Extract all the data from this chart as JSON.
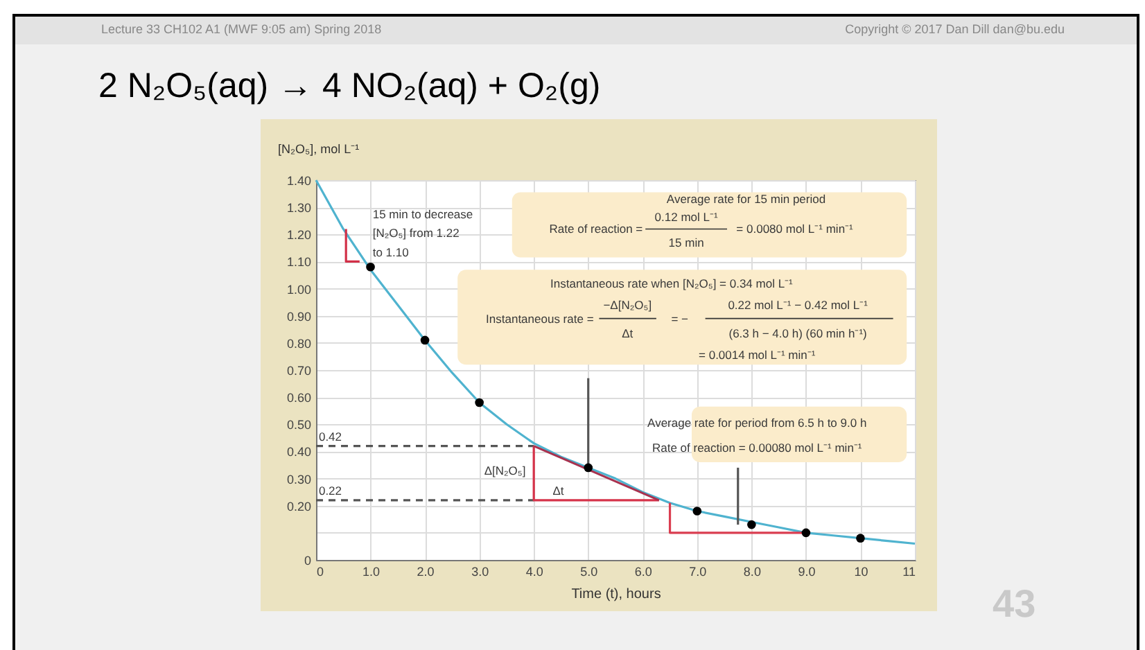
{
  "chart_data": {
    "type": "line",
    "title": "2 N₂O₅(aq) → 4 NO₂(aq) + O₂(g)",
    "xlabel": "Time (t), hours",
    "ylabel": "[N₂O₅], mol L⁻¹",
    "xlim": [
      0,
      11
    ],
    "ylim": [
      0,
      1.4
    ],
    "xticks": [
      0,
      {
        "value": 1,
        "label": "1.0"
      },
      {
        "value": 2,
        "label": "2.0"
      },
      {
        "value": 3,
        "label": "3.0"
      },
      {
        "value": 4,
        "label": "4.0"
      },
      {
        "value": 5,
        "label": "5.0"
      },
      {
        "value": 6,
        "label": "6.0"
      },
      {
        "value": 7,
        "label": "7.0"
      },
      {
        "value": 8,
        "label": "8.0"
      },
      {
        "value": 9,
        "label": "9.0"
      },
      10,
      11
    ],
    "yticks": [
      0,
      {
        "value": 0.1,
        "label": null
      },
      {
        "value": 0.2,
        "label": "0.20"
      },
      {
        "value": 0.3,
        "label": "0.30"
      },
      {
        "value": 0.4,
        "label": "0.40"
      },
      {
        "value": 0.5,
        "label": "0.50"
      },
      {
        "value": 0.6,
        "label": "0.60"
      },
      {
        "value": 0.7,
        "label": "0.70"
      },
      {
        "value": 0.8,
        "label": "0.80"
      },
      {
        "value": 0.9,
        "label": "0.90"
      },
      {
        "value": 1,
        "label": "1.00"
      },
      {
        "value": 1.1,
        "label": "1.10"
      },
      {
        "value": 1.2,
        "label": "1.20"
      },
      {
        "value": 1.3,
        "label": "1.30"
      },
      {
        "value": 1.4,
        "label": "1.40"
      }
    ],
    "grid": true,
    "series": [
      {
        "color": "#4fb3cf",
        "marker": "none",
        "x": [
          0,
          0.5,
          1,
          1.5,
          2,
          2.5,
          3,
          3.5,
          4,
          4.5,
          5,
          5.5,
          6,
          6.5,
          7,
          7.5,
          8,
          8.5,
          9,
          9.5,
          10,
          10.5,
          11
        ],
        "values": [
          1.4,
          1.22,
          1.07,
          0.94,
          0.81,
          0.69,
          0.58,
          0.5,
          0.43,
          0.38,
          0.34,
          0.3,
          0.25,
          0.21,
          0.18,
          0.16,
          0.14,
          0.12,
          0.1,
          0.09,
          0.08,
          0.07,
          0.06
        ]
      },
      {
        "type": "scatter",
        "color": "#000000",
        "marker": "circle",
        "x": [
          1,
          2,
          3,
          5,
          7,
          8,
          9,
          10
        ],
        "values": [
          1.08,
          0.81,
          0.58,
          0.34,
          0.18,
          0.13,
          0.1,
          0.08
        ]
      },
      {
        "type": "line",
        "color": "#555555",
        "line_style": "dashed",
        "marker": "none",
        "x": [
          0,
          4
        ],
        "values": [
          0.42,
          0.42
        ]
      },
      {
        "type": "line",
        "color": "#555555",
        "line_style": "dashed",
        "marker": "none",
        "x": [
          0,
          4
        ],
        "values": [
          0.22,
          0.22
        ]
      },
      {
        "type": "line",
        "color": "#d6334a",
        "marker": "none",
        "x": [
          4,
          4,
          6.3
        ],
        "values": [
          0.42,
          0.22,
          0.22
        ]
      },
      {
        "type": "line",
        "color": "#a8324f",
        "marker": "none",
        "x": [
          4,
          6.3
        ],
        "values": [
          0.42,
          0.22
        ]
      },
      {
        "type": "line",
        "color": "#da3d50",
        "marker": "none",
        "x": [
          6.5,
          6.5,
          9
        ],
        "values": [
          0.21,
          0.1,
          0.1
        ]
      },
      {
        "type": "line",
        "color": "#d23048",
        "marker": "none",
        "x": [
          0.55,
          0.55,
          0.8
        ],
        "values": [
          1.22,
          1.1,
          1.1
        ]
      },
      {
        "type": "line",
        "color": "#555555",
        "marker": "none",
        "x": [
          5,
          5
        ],
        "values": [
          0.34,
          0.67
        ]
      },
      {
        "type": "line",
        "color": "#555555",
        "marker": "none",
        "x": [
          7.75,
          7.75
        ],
        "values": [
          0.13,
          0.34
        ]
      }
    ],
    "annotations": [
      "Lecture 33 CH102 A1 (MWF 9:05 am) Spring 2018",
      "Copyright © 2017 Dan Dill dan@bu.edu",
      "43",
      "15 min to decrease",
      "[N₂O₅] from 1.22",
      "to 1.10",
      "Average rate for 15 min period",
      "Rate of reaction =",
      "0.12 mol L⁻¹",
      "15 min",
      "= 0.0080 mol L⁻¹ min⁻¹",
      "Instantaneous rate when [N₂O₅] = 0.34 mol L⁻¹",
      "Instantaneous rate =",
      "−Δ[N₂O₅]",
      "Δt",
      "= −",
      "0.22 mol L⁻¹ − 0.42 mol L⁻¹",
      "(6.3 h − 4.0 h) (60 min h⁻¹)",
      "= 0.0014 mol L⁻¹ min⁻¹",
      "Average rate for period from 6.5 h to 9.0 h",
      "Rate of reaction = 0.00080 mol L⁻¹ min⁻¹",
      {
        "text": "0.42",
        "x": 0,
        "y": 0.42
      },
      {
        "text": "0.22",
        "x": 0,
        "y": 0.22
      },
      "Δ[N₂O₅]",
      "Δt"
    ]
  }
}
